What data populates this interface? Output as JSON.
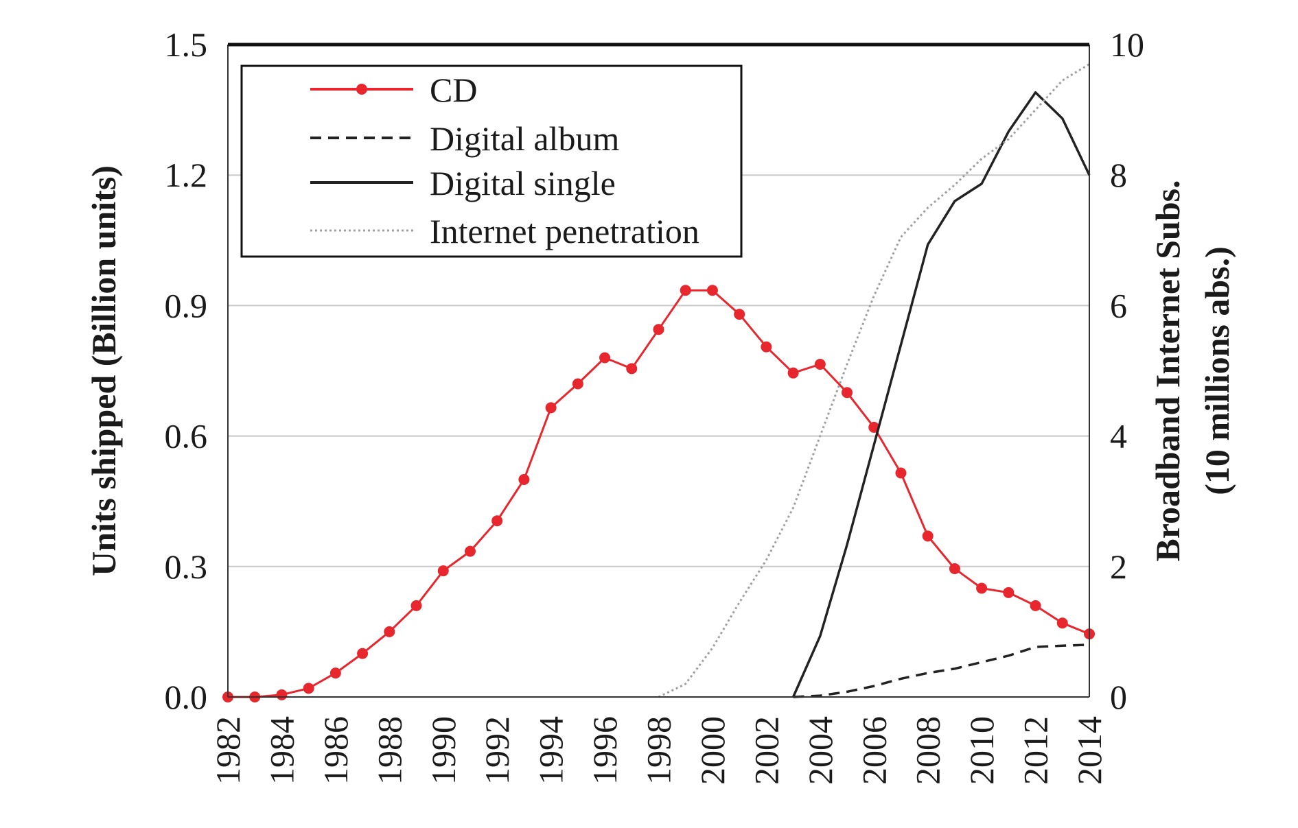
{
  "chart_data": {
    "type": "line",
    "title": "",
    "ylabel": "Units shipped (Billion units)",
    "y2label": [
      "Broadband Internet Subs.",
      "(10 millions abs.)"
    ],
    "xlabel": "",
    "xlim": [
      1982,
      2014
    ],
    "ylim": [
      0,
      1.5
    ],
    "y2lim": [
      0,
      10
    ],
    "x_ticks": [
      "1982",
      "1984",
      "1986",
      "1988",
      "1990",
      "1992",
      "1994",
      "1996",
      "1998",
      "2000",
      "2002",
      "2004",
      "2006",
      "2008",
      "2010",
      "2012",
      "2014"
    ],
    "y_ticks": [
      "0.0",
      "0.3",
      "0.6",
      "0.9",
      "1.2",
      "1.5"
    ],
    "y2_ticks": [
      "0",
      "2",
      "4",
      "6",
      "8",
      "10"
    ],
    "y_gridlines": [
      0.3,
      0.6,
      0.9,
      1.2
    ],
    "legend_position": "top-left",
    "series": [
      {
        "name": "CD",
        "axis": "left",
        "color": "#e8262d",
        "style": "solid-markers",
        "x": [
          1982,
          1983,
          1984,
          1985,
          1986,
          1987,
          1988,
          1989,
          1990,
          1991,
          1992,
          1993,
          1994,
          1995,
          1996,
          1997,
          1998,
          1999,
          2000,
          2001,
          2002,
          2003,
          2004,
          2005,
          2006,
          2007,
          2008,
          2009,
          2010,
          2011,
          2012,
          2013,
          2014
        ],
        "y": [
          0.0,
          0.0,
          0.005,
          0.02,
          0.055,
          0.1,
          0.15,
          0.21,
          0.29,
          0.335,
          0.405,
          0.5,
          0.665,
          0.72,
          0.78,
          0.755,
          0.845,
          0.935,
          0.935,
          0.88,
          0.805,
          0.745,
          0.765,
          0.7,
          0.62,
          0.515,
          0.37,
          0.295,
          0.25,
          0.24,
          0.21,
          0.17,
          0.145
        ]
      },
      {
        "name": "Digital album",
        "axis": "left",
        "color": "#222222",
        "style": "dashed",
        "x": [
          2003,
          2004,
          2005,
          2006,
          2007,
          2008,
          2009,
          2010,
          2011,
          2012,
          2013,
          2014
        ],
        "y": [
          0.0,
          0.003,
          0.012,
          0.025,
          0.042,
          0.055,
          0.065,
          0.08,
          0.095,
          0.115,
          0.118,
          0.12
        ]
      },
      {
        "name": "Digital single",
        "axis": "left",
        "color": "#222222",
        "style": "solid",
        "x": [
          2003,
          2004,
          2005,
          2006,
          2007,
          2008,
          2009,
          2010,
          2011,
          2012,
          2013,
          2014
        ],
        "y": [
          0.0,
          0.14,
          0.35,
          0.58,
          0.81,
          1.04,
          1.14,
          1.18,
          1.3,
          1.39,
          1.33,
          1.2
        ]
      },
      {
        "name": "Internet penetration",
        "axis": "right",
        "color": "#a0a0a0",
        "style": "dotted",
        "x": [
          1998,
          1999,
          2000,
          2001,
          2002,
          2003,
          2004,
          2005,
          2006,
          2007,
          2008,
          2009,
          2010,
          2011,
          2012,
          2013,
          2014
        ],
        "y": [
          0.0,
          0.2,
          0.75,
          1.45,
          2.1,
          2.9,
          4.0,
          5.1,
          6.15,
          7.05,
          7.5,
          7.85,
          8.25,
          8.55,
          9.0,
          9.45,
          9.7
        ]
      }
    ]
  }
}
